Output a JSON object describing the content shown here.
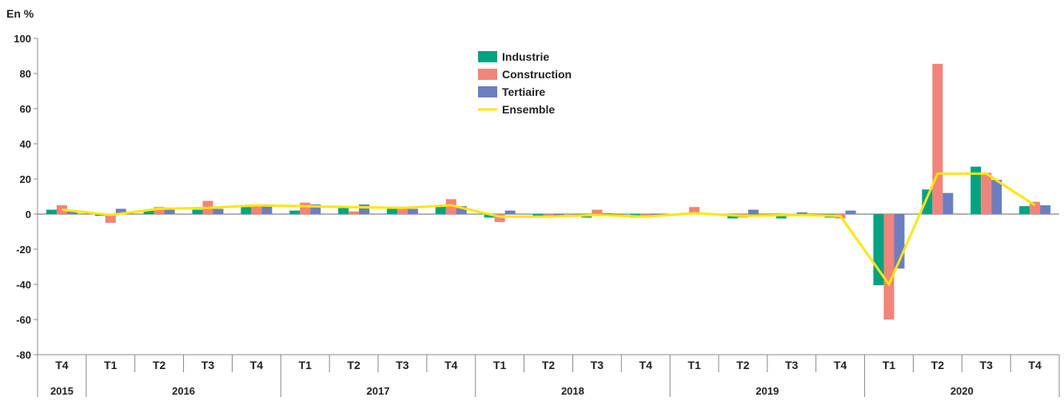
{
  "chart_data": {
    "type": "bar",
    "yunit_label": "En %",
    "ylim": [
      -80,
      100
    ],
    "yticks": [
      -80,
      -60,
      -40,
      -20,
      0,
      20,
      40,
      60,
      80,
      100
    ],
    "grid": false,
    "legend_position": "top-center",
    "categories": [
      "T4",
      "T1",
      "T2",
      "T3",
      "T4",
      "T1",
      "T2",
      "T3",
      "T4",
      "T1",
      "T2",
      "T3",
      "T4",
      "T1",
      "T2",
      "T3",
      "T4",
      "T1",
      "T2",
      "T3",
      "T4"
    ],
    "years": [
      {
        "label": "2015",
        "quarters": 1
      },
      {
        "label": "2016",
        "quarters": 4
      },
      {
        "label": "2017",
        "quarters": 4
      },
      {
        "label": "2018",
        "quarters": 4
      },
      {
        "label": "2019",
        "quarters": 4
      },
      {
        "label": "2020",
        "quarters": 4
      }
    ],
    "series": [
      {
        "name": "Industrie",
        "kind": "bar",
        "color": "#00a383",
        "values": [
          2.5,
          -1.0,
          2.0,
          2.5,
          4.0,
          2.0,
          3.5,
          3.5,
          4.5,
          -2.0,
          -2.0,
          -2.0,
          -2.0,
          0.5,
          -2.5,
          -2.5,
          -2.0,
          -40.5,
          14.0,
          27.0,
          4.5
        ]
      },
      {
        "name": "Construction",
        "kind": "bar",
        "color": "#f28479",
        "values": [
          5.0,
          -5.0,
          4.0,
          7.5,
          5.0,
          6.5,
          1.5,
          4.0,
          8.5,
          -4.5,
          -1.0,
          2.5,
          -1.0,
          4.0,
          -2.0,
          -0.5,
          -2.5,
          -60.0,
          85.5,
          23.5,
          7.0
        ]
      },
      {
        "name": "Tertiaire",
        "kind": "bar",
        "color": "#6a7fc1",
        "values": [
          1.5,
          3.0,
          3.0,
          3.0,
          5.5,
          5.5,
          5.5,
          3.0,
          4.5,
          2.0,
          -1.0,
          0.5,
          -1.0,
          0.5,
          2.5,
          1.0,
          2.0,
          -31.0,
          12.0,
          19.5,
          5.0
        ]
      },
      {
        "name": "Ensemble",
        "kind": "line",
        "color": "#ffe600",
        "values": [
          2.5,
          -0.5,
          3.0,
          3.5,
          5.0,
          4.5,
          4.0,
          3.5,
          5.0,
          -1.5,
          -1.5,
          -0.5,
          -1.5,
          0.5,
          -1.0,
          -0.5,
          -1.0,
          -40.0,
          23.0,
          23.0,
          5.0
        ]
      }
    ]
  }
}
